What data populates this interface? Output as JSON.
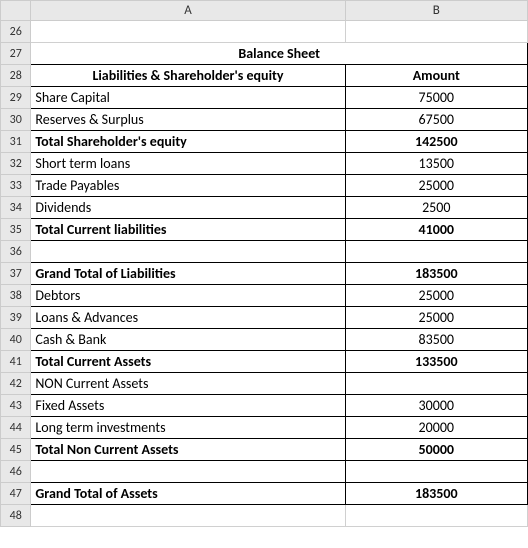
{
  "columns": {
    "A": "A",
    "B": "B"
  },
  "rowStart": 26,
  "title": "Balance Sheet",
  "header": {
    "label": "Liabilities & Shareholder's equity",
    "amount": "Amount"
  },
  "rows": [
    {
      "r": 29,
      "label": "Share Capital",
      "value": "75000",
      "bold": false,
      "labelBold": false
    },
    {
      "r": 30,
      "label": "Reserves & Surplus",
      "value": "67500",
      "bold": false,
      "labelBold": false
    },
    {
      "r": 31,
      "label": "Total Shareholder's equity",
      "value": "142500",
      "bold": true,
      "labelBold": true
    },
    {
      "r": 32,
      "label": "Short term loans",
      "value": "13500",
      "bold": false,
      "labelBold": false
    },
    {
      "r": 33,
      "label": "Trade Payables",
      "value": "25000",
      "bold": false,
      "labelBold": false
    },
    {
      "r": 34,
      "label": "Dividends",
      "value": "2500",
      "bold": false,
      "labelBold": false
    },
    {
      "r": 35,
      "label": "Total Current liabilities",
      "value": "41000",
      "bold": true,
      "labelBold": true
    },
    {
      "r": 36,
      "label": "",
      "value": "",
      "bold": false,
      "labelBold": false
    },
    {
      "r": 37,
      "label": "Grand Total of Liabilities",
      "value": "183500",
      "bold": true,
      "labelBold": true
    },
    {
      "r": 38,
      "label": "Debtors",
      "value": "25000",
      "bold": false,
      "labelBold": false
    },
    {
      "r": 39,
      "label": "Loans & Advances",
      "value": "25000",
      "bold": false,
      "labelBold": false
    },
    {
      "r": 40,
      "label": "Cash & Bank",
      "value": "83500",
      "bold": false,
      "labelBold": false
    },
    {
      "r": 41,
      "label": "Total Current Assets",
      "value": "133500",
      "bold": true,
      "labelBold": true
    },
    {
      "r": 42,
      "label": "NON Current Assets",
      "value": "",
      "bold": false,
      "labelBold": false
    },
    {
      "r": 43,
      "label": "Fixed Assets",
      "value": "30000",
      "bold": false,
      "labelBold": false
    },
    {
      "r": 44,
      "label": "Long term investments",
      "value": "20000",
      "bold": false,
      "labelBold": false
    },
    {
      "r": 45,
      "label": "Total Non Current Assets",
      "value": "50000",
      "bold": true,
      "labelBold": true
    },
    {
      "r": 46,
      "label": "",
      "value": "",
      "bold": false,
      "labelBold": false
    }
  ],
  "footer": {
    "r": 47,
    "label": "Grand Total of Assets",
    "value": "183500"
  },
  "colors": {
    "headerRowBg": "#e8e8e8",
    "titleBg": "#ffc000",
    "footerBg": "#00b0f0",
    "cellBorder": "#000000",
    "gridBorder": "#d0d0d0"
  }
}
